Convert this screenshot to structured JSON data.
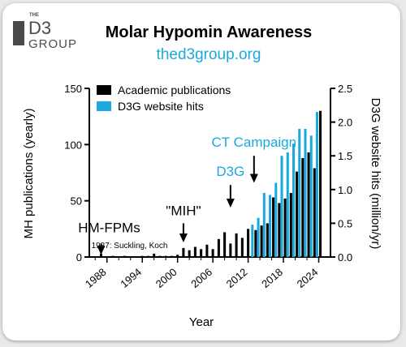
{
  "logo": {
    "the": "THE",
    "d3": "D3",
    "group": "GROUP"
  },
  "colors": {
    "academic": "#000000",
    "website": "#19a9df"
  },
  "chart_data": {
    "type": "bar",
    "title": "Molar Hypomin Awareness",
    "subtitle": "thed3group.org",
    "xlabel": "Year",
    "ylabel": "MH publications (yearly)",
    "y2label": "D3G website hits (million/yr)",
    "ylim": [
      0,
      150
    ],
    "y2lim": [
      0,
      2.5
    ],
    "yticks": [
      0,
      50,
      100,
      150
    ],
    "y2ticks": [
      "0.0",
      "0.5",
      "1.0",
      "1.5",
      "2.0",
      "2.5"
    ],
    "xticks": [
      1988,
      1994,
      2000,
      2006,
      2012,
      2018,
      2024
    ],
    "xlim": [
      1985,
      2026
    ],
    "grid": false,
    "legend_position": "top",
    "series": [
      {
        "name": "Academic publications",
        "axis": "left",
        "x": [
          1987,
          1989,
          1991,
          1994,
          1995,
          1996,
          1997,
          1998,
          1999,
          2000,
          2001,
          2002,
          2003,
          2004,
          2005,
          2006,
          2007,
          2008,
          2009,
          2010,
          2011,
          2012,
          2013,
          2014,
          2015,
          2016,
          2017,
          2018,
          2019,
          2020,
          2021,
          2022,
          2023,
          2024
        ],
        "values": [
          3,
          1,
          1,
          1,
          1,
          3,
          1,
          1,
          1,
          2,
          8,
          6,
          9,
          7,
          11,
          7,
          16,
          22,
          12,
          21,
          17,
          25,
          24,
          28,
          30,
          53,
          48,
          52,
          57,
          76,
          88,
          93,
          79,
          130
        ]
      },
      {
        "name": "D3G website hits",
        "axis": "right",
        "x": [
          2013,
          2014,
          2015,
          2016,
          2017,
          2018,
          2019,
          2020,
          2021,
          2022,
          2023,
          2024
        ],
        "values": [
          0.48,
          0.58,
          0.95,
          0.92,
          1.1,
          1.5,
          1.55,
          1.68,
          1.9,
          1.9,
          1.8,
          2.15
        ]
      }
    ],
    "annotations": [
      {
        "text": "HM-FPMs",
        "x": 1987,
        "y": 22,
        "color": "black"
      },
      {
        "text": "1987: Suckling, Koch",
        "x": 1987,
        "y": 8,
        "color": "black",
        "small": true
      },
      {
        "text": "\"MIH\"",
        "x": 2001,
        "y": 37,
        "color": "black"
      },
      {
        "text": "D3G",
        "x": 2009,
        "y": 72,
        "color": "blue"
      },
      {
        "text": "CT Campaign",
        "x": 2013,
        "y": 98,
        "color": "blue"
      }
    ]
  }
}
